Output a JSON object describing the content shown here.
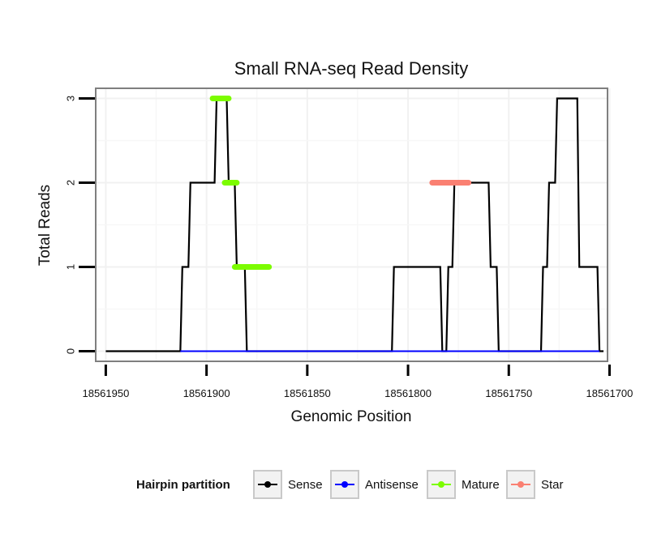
{
  "chart_data": {
    "type": "line",
    "title": "Small RNA-seq Read Density",
    "xlabel": "Genomic Position",
    "ylabel": "Total Reads",
    "xlim": [
      18561955,
      18561701
    ],
    "ylim": [
      -0.12,
      3.12
    ],
    "x_ticks": [
      18561950,
      18561900,
      18561850,
      18561800,
      18561750,
      18561700
    ],
    "x_tick_labels": [
      "18561950",
      "18561900",
      "18561850",
      "18561800",
      "18561750",
      "18561700"
    ],
    "y_ticks": [
      0,
      1,
      2,
      3
    ],
    "y_tick_labels": [
      "0",
      "1",
      "2",
      "3"
    ],
    "grid": true,
    "x_reversed": true,
    "legend": {
      "title": "Hairpin partition",
      "placement": "bottom",
      "items": [
        {
          "name": "Sense",
          "color": "#000000"
        },
        {
          "name": "Antisense",
          "color": "#0000ff"
        },
        {
          "name": "Mature",
          "color": "#7cfc00"
        },
        {
          "name": "Star",
          "color": "#fa8072"
        }
      ]
    },
    "series": [
      {
        "name": "Sense",
        "color": "#000000",
        "kind": "profile",
        "x": [
          18561950,
          18561913,
          18561912,
          18561909,
          18561908,
          18561896,
          18561895,
          18561890,
          18561889,
          18561886,
          18561885,
          18561881,
          18561880,
          18561878,
          18561877,
          18561862,
          18561861,
          18561808,
          18561807,
          18561784,
          18561783,
          18561781,
          18561780,
          18561778,
          18561777,
          18561760,
          18561759,
          18561756,
          18561755,
          18561734,
          18561733,
          18561731,
          18561730,
          18561727,
          18561726,
          18561716,
          18561715,
          18561706,
          18561705,
          18561703
        ],
        "y": [
          0,
          0,
          1,
          1,
          2,
          2,
          3,
          3,
          2,
          2,
          1,
          1,
          0,
          0,
          0,
          0,
          0,
          0,
          1,
          1,
          0,
          0,
          1,
          1,
          2,
          2,
          1,
          1,
          0,
          0,
          1,
          1,
          2,
          2,
          3,
          3,
          1,
          1,
          0,
          0
        ]
      },
      {
        "name": "Antisense",
        "color": "#0000ff",
        "kind": "profile",
        "x": [
          18561913,
          18561705
        ],
        "y": [
          0,
          0
        ]
      },
      {
        "name": "Mature",
        "color": "#7cfc00",
        "kind": "segments",
        "segments": [
          {
            "x_start": 18561897,
            "x_end": 18561889,
            "y": 3
          },
          {
            "x_start": 18561891,
            "x_end": 18561885,
            "y": 2
          },
          {
            "x_start": 18561886,
            "x_end": 18561869,
            "y": 1
          }
        ]
      },
      {
        "name": "Star",
        "color": "#fa8072",
        "kind": "segments",
        "segments": [
          {
            "x_start": 18561788,
            "x_end": 18561770,
            "y": 2
          }
        ]
      }
    ]
  }
}
